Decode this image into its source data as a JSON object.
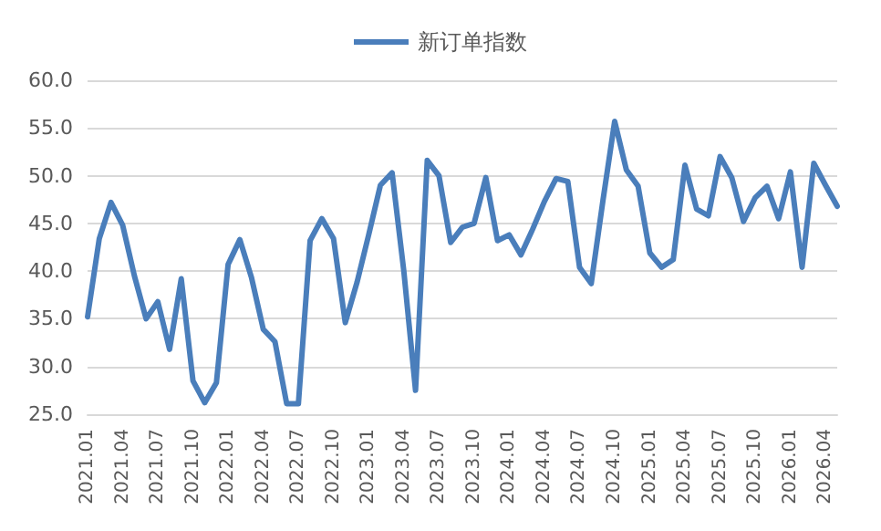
{
  "chart_data": {
    "type": "line",
    "categories": [
      "2021.01",
      null,
      null,
      "2021.04",
      null,
      null,
      "2021.07",
      null,
      null,
      "2021.10",
      null,
      null,
      "2022.01",
      null,
      null,
      "2022.04",
      null,
      null,
      "2022.07",
      null,
      null,
      "2022.10",
      null,
      null,
      "2023.01",
      null,
      null,
      "2023.04",
      null,
      null,
      "2023.07",
      null,
      null,
      "2023.10",
      null,
      null,
      "2024.01",
      null,
      null,
      "2024.04",
      null,
      null,
      "2024.07",
      null,
      null,
      "2024.10",
      null,
      null,
      "2025.01",
      null,
      null,
      "2025.04",
      null,
      null,
      "2025.07",
      null,
      null,
      "2025.10",
      null,
      null,
      "2026.01",
      null,
      null,
      "2026.04",
      null
    ],
    "series": [
      {
        "name": "新订单指数",
        "color": "#4a7ebb",
        "values": [
          35.2,
          43.4,
          47.2,
          44.8,
          39.5,
          35.0,
          36.8,
          31.8,
          39.2,
          28.5,
          26.2,
          28.3,
          40.7,
          43.3,
          39.3,
          33.9,
          32.6,
          26.1,
          26.1,
          43.2,
          45.5,
          43.4,
          34.6,
          38.8,
          43.8,
          49.0,
          50.3,
          40.0,
          27.5,
          51.6,
          50.0,
          43.0,
          44.6,
          45.0,
          49.8,
          43.2,
          43.8,
          41.7,
          44.4,
          47.3,
          49.7,
          49.4,
          40.4,
          38.7,
          47.4,
          55.7,
          50.6,
          48.9,
          41.9,
          40.4,
          41.2,
          51.1,
          46.5,
          45.8,
          52.0,
          49.8,
          45.2,
          47.7,
          48.9,
          45.5,
          50.4,
          40.4,
          51.3,
          49.0,
          46.8
        ]
      }
    ],
    "ylim": [
      25,
      60
    ],
    "yticks": [
      {
        "value": 25,
        "label": "25.0"
      },
      {
        "value": 30,
        "label": "30.0"
      },
      {
        "value": 35,
        "label": "35.0"
      },
      {
        "value": 40,
        "label": "40.0"
      },
      {
        "value": 45,
        "label": "45.0"
      },
      {
        "value": 50,
        "label": "50.0"
      },
      {
        "value": 55,
        "label": "55.0"
      },
      {
        "value": 60,
        "label": "60.0"
      }
    ],
    "grid": "y",
    "legend": "top",
    "marker": "none",
    "line_style": "solid"
  }
}
